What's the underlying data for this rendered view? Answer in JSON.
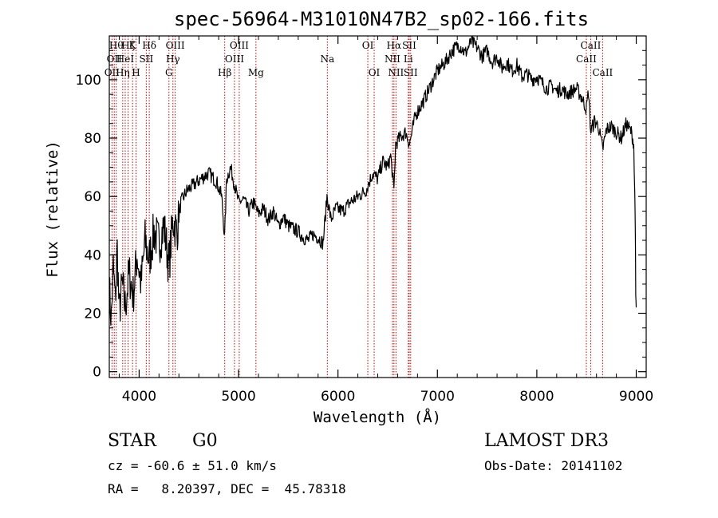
{
  "chart_data": {
    "type": "line",
    "title": "spec-56964-M31010N47B2_sp02-166.fits",
    "xlabel": "Wavelength (Å)",
    "ylabel": "Flux (relative)",
    "xlim": [
      3700,
      9100
    ],
    "ylim": [
      -2,
      115
    ],
    "xticks": [
      4000,
      5000,
      6000,
      7000,
      8000,
      9000
    ],
    "yticks": [
      0,
      20,
      40,
      60,
      80,
      100
    ],
    "series": [
      {
        "name": "spectrum",
        "x": [
          3700,
          3720,
          3740,
          3760,
          3780,
          3800,
          3830,
          3860,
          3900,
          3940,
          3980,
          4020,
          4060,
          4100,
          4150,
          4200,
          4250,
          4300,
          4340,
          4380,
          4420,
          4480,
          4550,
          4620,
          4700,
          4780,
          4830,
          4860,
          4880,
          4920,
          4960,
          5000,
          5050,
          5100,
          5150,
          5200,
          5250,
          5300,
          5350,
          5400,
          5450,
          5500,
          5550,
          5600,
          5650,
          5700,
          5750,
          5800,
          5850,
          5890,
          5930,
          5980,
          6050,
          6120,
          6200,
          6280,
          6350,
          6400,
          6450,
          6500,
          6530,
          6563,
          6580,
          6620,
          6680,
          6720,
          6780,
          6850,
          6920,
          7000,
          7080,
          7150,
          7220,
          7280,
          7340,
          7400,
          7450,
          7500,
          7550,
          7600,
          7650,
          7700,
          7750,
          7800,
          7850,
          7900,
          7950,
          8000,
          8050,
          8100,
          8150,
          8200,
          8250,
          8300,
          8350,
          8400,
          8450,
          8498,
          8520,
          8542,
          8580,
          8620,
          8662,
          8700,
          8750,
          8800,
          8850,
          8900,
          8950,
          8975,
          8985,
          8990,
          8995,
          9000
        ],
        "y": [
          28,
          18,
          36,
          24,
          42,
          20,
          30,
          22,
          34,
          26,
          40,
          30,
          45,
          38,
          48,
          44,
          50,
          36,
          52,
          48,
          58,
          62,
          64,
          66,
          68,
          65,
          60,
          46,
          66,
          70,
          64,
          58,
          59,
          55,
          58,
          54,
          56,
          52,
          55,
          50,
          53,
          50,
          49,
          48,
          46,
          45,
          47,
          46,
          44,
          60,
          52,
          56,
          55,
          58,
          60,
          62,
          68,
          66,
          72,
          70,
          74,
          62,
          78,
          80,
          82,
          78,
          88,
          92,
          97,
          103,
          106,
          110,
          112,
          109,
          113,
          111,
          108,
          110,
          106,
          108,
          104,
          106,
          103,
          105,
          101,
          102,
          100,
          101,
          99,
          97,
          98,
          96,
          97,
          95,
          96,
          97,
          94,
          90,
          96,
          82,
          86,
          84,
          76,
          83,
          84,
          82,
          80,
          85,
          82,
          78,
          60,
          52,
          24,
          22
        ]
      }
    ],
    "lines": [
      {
        "x": 3727,
        "label": "OII",
        "row": 3
      },
      {
        "x": 3750,
        "label": "OII",
        "row": 2
      },
      {
        "x": 3770,
        "label": "Hθ",
        "row": 1
      },
      {
        "x": 3835,
        "label": "Hη",
        "row": 3
      },
      {
        "x": 3860,
        "label": "HeI",
        "row": 2
      },
      {
        "x": 3889,
        "label": "Hζ",
        "row": 1
      },
      {
        "x": 3934,
        "label": "K",
        "row": 1
      },
      {
        "x": 3969,
        "label": "H",
        "row": 3
      },
      {
        "x": 4072,
        "label": "SII",
        "row": 2
      },
      {
        "x": 4102,
        "label": "Hδ",
        "row": 1
      },
      {
        "x": 4300,
        "label": "G",
        "row": 3
      },
      {
        "x": 4340,
        "label": "Hγ",
        "row": 2
      },
      {
        "x": 4363,
        "label": "OIII",
        "row": 1
      },
      {
        "x": 4861,
        "label": "Hβ",
        "row": 3
      },
      {
        "x": 4959,
        "label": "OIII",
        "row": 2
      },
      {
        "x": 5007,
        "label": "OIII",
        "row": 1
      },
      {
        "x": 5175,
        "label": "Mg",
        "row": 3
      },
      {
        "x": 5893,
        "label": "Na",
        "row": 2
      },
      {
        "x": 6300,
        "label": "OI",
        "row": 1
      },
      {
        "x": 6364,
        "label": "OI",
        "row": 3
      },
      {
        "x": 6548,
        "label": "NII",
        "row": 2
      },
      {
        "x": 6563,
        "label": "Hα",
        "row": 1
      },
      {
        "x": 6583,
        "label": "NII",
        "row": 3
      },
      {
        "x": 6707,
        "label": "Li",
        "row": 2
      },
      {
        "x": 6717,
        "label": "SII",
        "row": 1
      },
      {
        "x": 6731,
        "label": "SII",
        "row": 3
      },
      {
        "x": 8498,
        "label": "CaII",
        "row": 2
      },
      {
        "x": 8542,
        "label": "CaII",
        "row": 1
      },
      {
        "x": 8662,
        "label": "CaII",
        "row": 3
      }
    ]
  },
  "info": {
    "class_label": "STAR",
    "subclass": "G0",
    "survey": "LAMOST DR3",
    "redshift": "cz = -60.6 ± 51.0 km/s",
    "obs_date": "Obs-Date: 20141102",
    "coords": "RA =   8.20397, DEC =  45.78318"
  },
  "colors": {
    "axes": "#000000",
    "spectrum": "#000000",
    "lines": "#cc0000"
  }
}
